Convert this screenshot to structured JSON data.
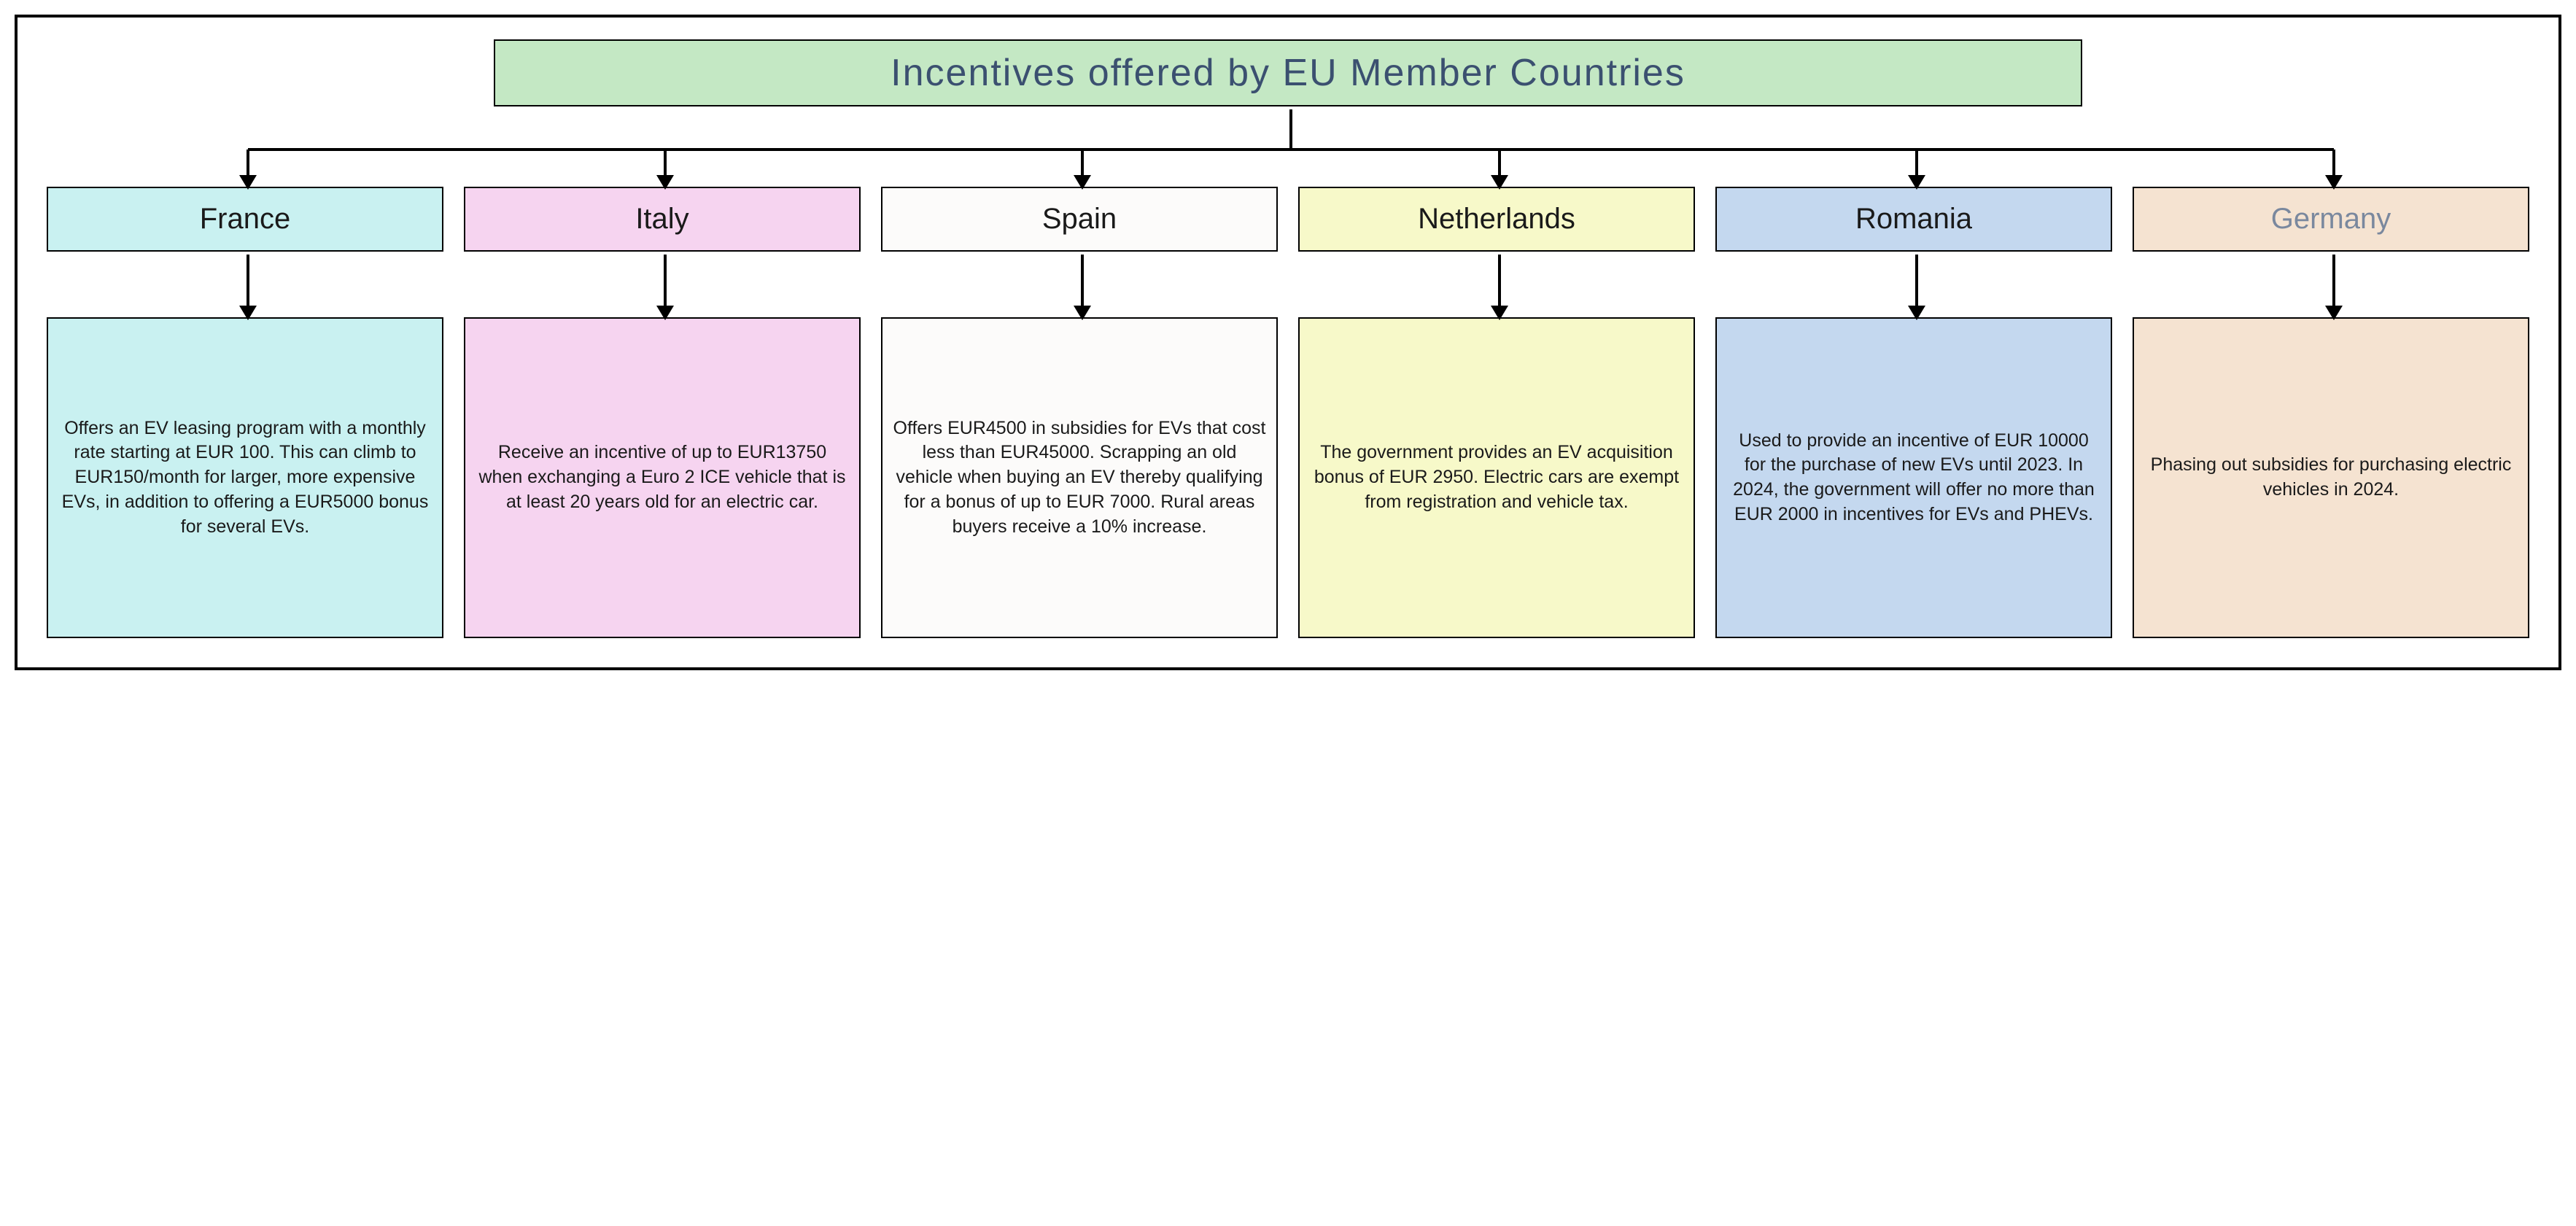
{
  "type": "tree",
  "background_color": "#ffffff",
  "border_color": "#000000",
  "border_width": 4,
  "title": {
    "text": "Incentives offered by EU Member Countries",
    "bg": "#c4e8c4",
    "color": "#3b5070",
    "fontsize": 52
  },
  "country_fontsize": 40,
  "desc_fontsize": 25,
  "text_color_dark": "#1a1a1a",
  "text_color_slate": "#7a889e",
  "arrow_color": "#000000",
  "columns": [
    {
      "name": "France",
      "bg": "#c9f1f1",
      "name_color": "#1a1a1a",
      "desc": "Offers an EV leasing program with a monthly rate starting at EUR 100. This can climb to EUR150/month for larger, more expensive EVs, in addition to offering a EUR5000 bonus for several EVs."
    },
    {
      "name": "Italy",
      "bg": "#f6d4f0",
      "name_color": "#1a1a1a",
      "desc": "Receive an incentive of up to EUR13750 when exchanging a Euro 2 ICE vehicle that is at least 20 years old for an electric car."
    },
    {
      "name": "Spain",
      "bg": "#fcfbfa",
      "name_color": "#1a1a1a",
      "desc": "Offers EUR4500  in subsidies for EVs that cost less than EUR45000. Scrapping an old vehicle when buying an EV thereby qualifying for a bonus of up to  EUR 7000. Rural areas buyers receive a 10% increase."
    },
    {
      "name": "Netherlands",
      "bg": "#f7f9c9",
      "name_color": "#1a1a1a",
      "desc": "The government provides an EV acquisition bonus of EUR 2950. Electric cars are exempt from registration and vehicle tax."
    },
    {
      "name": "Romania",
      "bg": "#c4d8ef",
      "name_color": "#1a1a1a",
      "desc": "Used to provide an incentive of EUR 10000 for the purchase of new EVs until 2023. In 2024, the government will offer no more than EUR 2000 in incentives for EVs and PHEVs."
    },
    {
      "name": "Germany",
      "bg": "#f5e3d1",
      "name_color": "#7a889e",
      "desc": "Phasing out subsidies for purchasing electric vehicles in 2024."
    }
  ]
}
